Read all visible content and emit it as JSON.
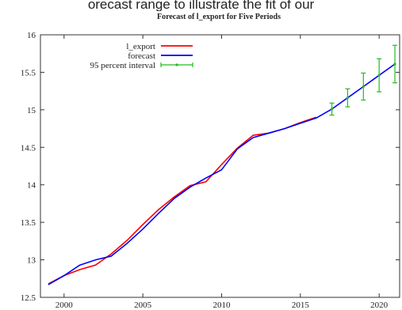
{
  "top_caption": "orecast range to illustrate the fit of our",
  "chart_data": {
    "type": "line",
    "title": "Forecast of l_export for Five Periods",
    "xlabel": "",
    "ylabel": "",
    "xlim": [
      1998.5,
      2021.3
    ],
    "ylim": [
      12.5,
      16
    ],
    "x_ticks": [
      2000,
      2005,
      2010,
      2015,
      2020
    ],
    "x_tick_labels": [
      "2000",
      "2005",
      "2010",
      "2015",
      "2020"
    ],
    "y_ticks": [
      12.5,
      13,
      13.5,
      14,
      14.5,
      15,
      15.5,
      16
    ],
    "y_tick_labels": [
      "12.5",
      "13",
      "13.5",
      "14",
      "14.5",
      "15",
      "15.5",
      "16"
    ],
    "grid": false,
    "legend_position": "top-left",
    "series": [
      {
        "name": "l_export",
        "color": "#ff0000",
        "x": [
          1999,
          2000,
          2001,
          2002,
          2003,
          2004,
          2005,
          2006,
          2007,
          2008,
          2009,
          2010,
          2011,
          2012,
          2013,
          2014,
          2015,
          2016
        ],
        "y": [
          12.68,
          12.79,
          12.87,
          12.93,
          13.08,
          13.26,
          13.47,
          13.67,
          13.84,
          13.99,
          14.04,
          14.27,
          14.49,
          14.66,
          14.69,
          14.75,
          14.83,
          14.9
        ]
      },
      {
        "name": "forecast",
        "color": "#0000ff",
        "x": [
          1999,
          2000,
          2001,
          2002,
          2003,
          2004,
          2005,
          2006,
          2007,
          2008,
          2009,
          2010,
          2011,
          2012,
          2013,
          2014,
          2015,
          2016,
          2017,
          2018,
          2019,
          2020,
          2021
        ],
        "y": [
          12.67,
          12.79,
          12.93,
          13.0,
          13.05,
          13.22,
          13.41,
          13.62,
          13.82,
          13.97,
          14.09,
          14.2,
          14.48,
          14.63,
          14.69,
          14.75,
          14.82,
          14.89,
          15.01,
          15.16,
          15.31,
          15.46,
          15.61
        ]
      },
      {
        "name": "95 percent interval",
        "color": "#22bb22",
        "type": "errorbar",
        "x": [
          2017,
          2018,
          2019,
          2020,
          2021
        ],
        "y": [
          15.01,
          15.16,
          15.31,
          15.46,
          15.61
        ],
        "low": [
          14.93,
          15.04,
          15.13,
          15.24,
          15.36
        ],
        "high": [
          15.09,
          15.28,
          15.49,
          15.68,
          15.86
        ]
      }
    ]
  }
}
